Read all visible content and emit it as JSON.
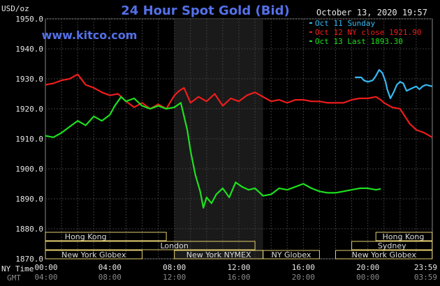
{
  "chart_data": {
    "type": "line",
    "title": "24 Hour Spot Gold (Bid)",
    "site": "www.kitco.com",
    "timestamp": "October 13, 2020 19:57",
    "y_unit": "USD/oz",
    "ylim": [
      1870,
      1950
    ],
    "yticks": [
      "1950.0",
      "1940.0",
      "1930.0",
      "1920.0",
      "1910.0",
      "1900.0",
      "1890.0",
      "1880.0",
      "1870.0"
    ],
    "xlim": [
      0,
      24
    ],
    "row_label_ny": "NY Time",
    "row_label_gmt": "GMT",
    "x_ticks_ny": [
      "00:00",
      "04:00",
      "08:00",
      "12:00",
      "16:00",
      "20:00",
      "23:59"
    ],
    "x_ticks_gmt": [
      "04:00",
      "08:00",
      "12:00",
      "16:00",
      "20:00",
      "00:00",
      "03:59"
    ],
    "highlight_hours": [
      8.0,
      13.5
    ],
    "grid": true,
    "legend_position": "top-right",
    "series": [
      {
        "name": "Oct 11 Sunday",
        "legend_text": "Oct 11 Sunday",
        "color": "#37b8f0",
        "x": [
          19.2,
          19.6,
          19.75,
          20.0,
          20.3,
          20.5,
          20.7,
          20.9,
          21.1,
          21.2,
          21.4,
          21.6,
          21.8,
          22.0,
          22.2,
          22.4,
          22.6,
          22.8,
          23.0,
          23.2,
          23.4,
          23.6,
          23.99
        ],
        "y": [
          1930.5,
          1930.5,
          1929.5,
          1929.0,
          1929.5,
          1931.0,
          1933.0,
          1932.0,
          1929.0,
          1926.5,
          1923.5,
          1925.5,
          1928.0,
          1929.0,
          1928.5,
          1926.0,
          1926.5,
          1927.0,
          1927.5,
          1926.5,
          1927.5,
          1928.0,
          1927.5
        ]
      },
      {
        "name": "Oct 12 NY close 1921.90",
        "legend_text": "Oct 12 NY close 1921.90",
        "color": "#ee1c1c",
        "x": [
          0,
          0.5,
          1.0,
          1.5,
          2.0,
          2.5,
          3.0,
          3.5,
          4.0,
          4.5,
          5.0,
          5.5,
          6.0,
          6.5,
          7.0,
          7.5,
          8.0,
          8.3,
          8.6,
          9.0,
          9.5,
          10.0,
          10.5,
          11.0,
          11.5,
          12.0,
          12.5,
          13.0,
          13.5,
          14.0,
          14.5,
          15.0,
          15.5,
          16.0,
          16.5,
          17.0,
          17.5,
          18.0,
          18.5,
          19.0,
          19.5,
          20.0,
          20.5,
          20.8,
          21.0,
          21.5,
          22.0,
          22.3,
          22.6,
          23.0,
          23.5,
          23.99
        ],
        "y": [
          1928.0,
          1928.5,
          1929.5,
          1930.0,
          1931.5,
          1928.0,
          1927.0,
          1925.5,
          1924.5,
          1925.0,
          1922.5,
          1920.5,
          1922.0,
          1920.0,
          1921.5,
          1920.0,
          1924.5,
          1926.0,
          1927.0,
          1922.0,
          1924.0,
          1922.5,
          1925.0,
          1921.0,
          1923.5,
          1922.5,
          1924.5,
          1925.5,
          1924.0,
          1922.5,
          1923.0,
          1922.0,
          1923.0,
          1923.0,
          1922.5,
          1922.5,
          1922.0,
          1922.0,
          1922.0,
          1923.0,
          1923.5,
          1923.5,
          1924.0,
          1923.0,
          1922.0,
          1920.5,
          1920.0,
          1917.5,
          1915.0,
          1913.0,
          1912.0,
          1910.5
        ]
      },
      {
        "name": "Oct 13 Last 1893.30",
        "legend_text": "Oct 13 Last 1893.30",
        "color": "#1ee01e",
        "x": [
          0,
          0.5,
          1.0,
          1.5,
          2.0,
          2.5,
          3.0,
          3.5,
          4.0,
          4.3,
          4.7,
          5.0,
          5.5,
          6.0,
          6.5,
          7.0,
          7.5,
          8.0,
          8.4,
          8.8,
          9.0,
          9.3,
          9.6,
          9.8,
          10.0,
          10.3,
          10.6,
          11.0,
          11.4,
          11.8,
          12.2,
          12.6,
          13.0,
          13.5,
          14.0,
          14.5,
          15.0,
          15.5,
          16.0,
          16.5,
          17.0,
          17.5,
          18.0,
          18.5,
          19.0,
          19.5,
          20.0,
          20.5,
          20.8
        ],
        "y": [
          1911.0,
          1910.5,
          1912.0,
          1914.0,
          1916.0,
          1914.5,
          1917.5,
          1916.0,
          1918.0,
          1921.0,
          1924.0,
          1922.5,
          1923.5,
          1921.0,
          1920.0,
          1921.0,
          1920.0,
          1920.5,
          1922.0,
          1913.0,
          1906.0,
          1898.0,
          1892.5,
          1887.0,
          1890.5,
          1888.5,
          1891.5,
          1893.5,
          1890.5,
          1895.5,
          1894.0,
          1893.0,
          1893.5,
          1891.0,
          1891.5,
          1893.5,
          1893.0,
          1894.0,
          1895.0,
          1893.5,
          1892.5,
          1892.0,
          1892.0,
          1892.5,
          1893.0,
          1893.5,
          1893.5,
          1893.0,
          1893.3
        ]
      }
    ],
    "markets": [
      {
        "name": "Hong Kong",
        "start": 0,
        "end": 7.5,
        "row": 0,
        "label_at": 2.5
      },
      {
        "name": "London",
        "start": 0,
        "end": 13.0,
        "row": 1,
        "label_at": 8.0
      },
      {
        "name": "New York Globex",
        "start": 0,
        "end": 6.0,
        "row": 2,
        "label_at": 3.0
      },
      {
        "name": "New York NYMEX",
        "start": 8.0,
        "end": 13.5,
        "row": 2,
        "label_at": 10.75
      },
      {
        "name": "NY Globex",
        "start": 13.5,
        "end": 17.0,
        "row": 2,
        "label_at": 15.25
      },
      {
        "name": "New York Globex",
        "start": 18.0,
        "end": 23.99,
        "row": 2,
        "label_at": 21.0
      },
      {
        "name": "Sydney",
        "start": 19.0,
        "end": 23.99,
        "row": 1,
        "label_at": 21.5
      },
      {
        "name": "Hong Kong",
        "start": 20.5,
        "end": 23.99,
        "row": 0,
        "label_at": 22.2
      }
    ]
  }
}
